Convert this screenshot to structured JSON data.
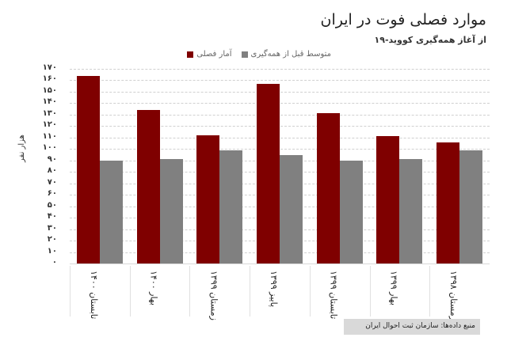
{
  "header": {
    "title": "موارد فصلی فوت در ایران",
    "subtitle": "از آغاز همه‌گیری کووید-۱۹"
  },
  "legend": {
    "seasonal": "آمار فصلی",
    "baseline": "متوسط قبل از همه‌گیری"
  },
  "colors": {
    "seasonal": "#7f0000",
    "baseline": "#808080"
  },
  "footer": {
    "source": "منبع داده‌ها: سازمان ثبت احوال ایران"
  },
  "chart_data": {
    "type": "bar",
    "title": "موارد فصلی فوت در ایران",
    "subtitle": "از آغاز همه‌گیری کووید-۱۹",
    "xlabel": "",
    "ylabel": "هزار نفر",
    "ylim": [
      0,
      170
    ],
    "yticks": [
      0,
      10,
      20,
      30,
      40,
      50,
      60,
      70,
      80,
      90,
      100,
      110,
      120,
      130,
      140,
      150,
      160,
      170
    ],
    "ytick_labels": [
      "۰",
      "۱۰",
      "۲۰",
      "۳۰",
      "۴۰",
      "۵۰",
      "۶۰",
      "۷۰",
      "۸۰",
      "۹۰",
      "۱۰۰",
      "۱۱۰",
      "۱۲۰",
      "۱۳۰",
      "۱۴۰",
      "۱۵۰",
      "۱۶۰",
      "۱۷۰"
    ],
    "grid": true,
    "legend_position": "top",
    "categories": [
      "زمستان ۱۳۹۸",
      "بهار ۱۳۹۹",
      "تابستان ۱۳۹۹",
      "پاییز ۱۳۹۹",
      "زمستان ۱۳۹۹",
      "بهار ۱۴۰۰",
      "تابستان ۱۴۰۰"
    ],
    "series": [
      {
        "name": "آمار فصلی",
        "color": "#7f0000",
        "values": [
          106,
          111,
          131,
          157,
          112,
          134,
          164
        ]
      },
      {
        "name": "متوسط قبل از همه‌گیری",
        "color": "#808080",
        "values": [
          99,
          91,
          90,
          95,
          99,
          91,
          90
        ]
      }
    ],
    "source": "منبع داده‌ها: سازمان ثبت احوال ایران"
  }
}
